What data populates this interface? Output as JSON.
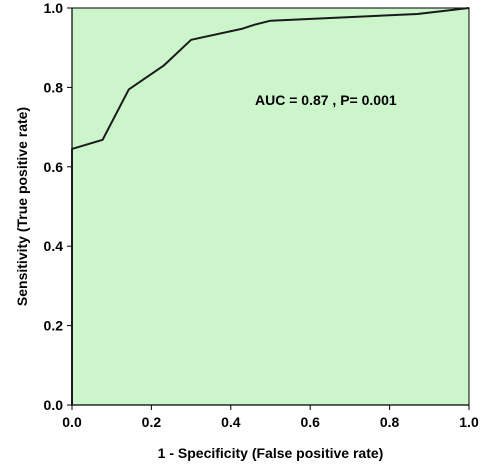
{
  "chart_data": {
    "type": "line",
    "title": "",
    "xlabel": "1 - Specificity (False positive rate)",
    "ylabel": "Sensitivity (True positive rate)",
    "xlim": [
      0,
      1
    ],
    "ylim": [
      0,
      1
    ],
    "x_ticks": [
      "0.0",
      "0.2",
      "0.4",
      "0.6",
      "0.8",
      "1.0"
    ],
    "y_ticks": [
      "0.0",
      "0.2",
      "0.4",
      "0.6",
      "0.8",
      "1.0"
    ],
    "grid": false,
    "plot_background": "#ccf5cc",
    "line_color": "#1a1a1a",
    "annotation": "AUC = 0.87 ,  P= 0.001",
    "series": [
      {
        "x": [
          0.0,
          0.0,
          0.0,
          0.0,
          0.077,
          0.143,
          0.231,
          0.3,
          0.43,
          0.46,
          0.5,
          0.87,
          1.0
        ],
        "y": [
          0.0,
          0.27,
          0.27,
          0.645,
          0.668,
          0.795,
          0.855,
          0.92,
          0.948,
          0.958,
          0.968,
          0.985,
          1.0
        ]
      }
    ]
  }
}
